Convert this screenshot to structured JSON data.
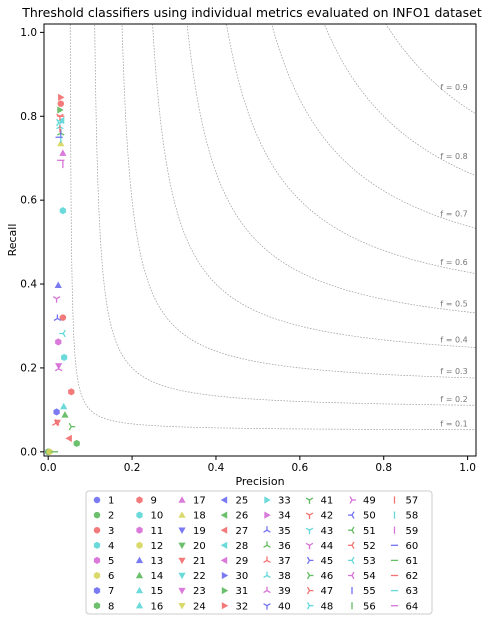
{
  "chart_data": {
    "type": "scatter",
    "title": "Threshold classifiers using individual metrics evaluated on INFO1 dataset",
    "xlabel": "Precision",
    "ylabel": "Recall",
    "xlim": [
      -0.01,
      1.02
    ],
    "ylim": [
      -0.01,
      1.02
    ],
    "x_ticks": [
      0.0,
      0.2,
      0.4,
      0.6,
      0.8,
      1.0
    ],
    "y_ticks": [
      0.0,
      0.2,
      0.4,
      0.6,
      0.8,
      1.0
    ],
    "x_tick_labels": [
      "0.0",
      "0.2",
      "0.4",
      "0.6",
      "0.8",
      "1.0"
    ],
    "y_tick_labels": [
      "0.0",
      "0.2",
      "0.4",
      "0.6",
      "0.8",
      "1.0"
    ],
    "grid": false,
    "legend_placement": "below",
    "f_score_isolines": [
      {
        "f": 0.1,
        "label": "f = 0.1"
      },
      {
        "f": 0.2,
        "label": "f = 0.2"
      },
      {
        "f": 0.3,
        "label": "f = 0.3"
      },
      {
        "f": 0.4,
        "label": "f = 0.4"
      },
      {
        "f": 0.5,
        "label": "f = 0.5"
      },
      {
        "f": 0.6,
        "label": "f = 0.6"
      },
      {
        "f": 0.7,
        "label": "f = 0.7"
      },
      {
        "f": 0.8,
        "label": "f = 0.8"
      },
      {
        "f": 0.9,
        "label": "f = 0.9"
      }
    ],
    "series": [
      {
        "name": "1",
        "marker": "circle",
        "color": "#6b6bf2",
        "points": [
          [
            0.0,
            0.0
          ]
        ]
      },
      {
        "name": "2",
        "marker": "circle",
        "color": "#5cb85c",
        "points": [
          [
            0.0,
            0.0
          ]
        ]
      },
      {
        "name": "3",
        "marker": "circle",
        "color": "#f26b6b",
        "points": [
          [
            0.03,
            0.83
          ],
          [
            0.035,
            0.32
          ]
        ]
      },
      {
        "name": "4",
        "marker": "hexagon",
        "color": "#5cd6d6",
        "points": [
          [
            0.035,
            0.575
          ],
          [
            0.038,
            0.225
          ]
        ]
      },
      {
        "name": "5",
        "marker": "hexagon",
        "color": "#d66bd6",
        "points": [
          [
            0.024,
            0.262
          ]
        ]
      },
      {
        "name": "6",
        "marker": "hexagon",
        "color": "#d6d65c",
        "points": [
          [
            0.003,
            0.0
          ]
        ]
      },
      {
        "name": "7",
        "marker": "hexagon",
        "color": "#6b6bf2",
        "points": [
          [
            0.02,
            0.095
          ]
        ]
      },
      {
        "name": "8",
        "marker": "hexagon",
        "color": "#5cb85c",
        "points": [
          [
            0.068,
            0.02
          ]
        ]
      },
      {
        "name": "9",
        "marker": "hexagon",
        "color": "#f26b6b",
        "points": [
          [
            0.055,
            0.143
          ]
        ]
      },
      {
        "name": "13",
        "marker": "triangle-up",
        "color": "#6b6bf2",
        "points": [
          [
            0.024,
            0.397
          ]
        ]
      },
      {
        "name": "14",
        "marker": "triangle-up",
        "color": "#5cb85c",
        "points": [
          [
            0.04,
            0.088
          ]
        ]
      },
      {
        "name": "15",
        "marker": "triangle-up",
        "color": "#5cd6d6",
        "points": [
          [
            0.037,
            0.108
          ]
        ]
      },
      {
        "name": "17",
        "marker": "triangle-up",
        "color": "#d66bd6",
        "points": [
          [
            0.035,
            0.712
          ]
        ]
      },
      {
        "name": "18",
        "marker": "triangle-up",
        "color": "#d6d65c",
        "points": [
          [
            0.03,
            0.735
          ]
        ]
      },
      {
        "name": "21",
        "marker": "triangle-down",
        "color": "#f26b6b",
        "points": [
          [
            0.022,
            0.07
          ]
        ]
      },
      {
        "name": "23",
        "marker": "triangle-down",
        "color": "#d66bd6",
        "points": [
          [
            0.025,
            0.205
          ]
        ]
      },
      {
        "name": "27",
        "marker": "triangle-left",
        "color": "#f26b6b",
        "points": [
          [
            0.05,
            0.032
          ]
        ]
      },
      {
        "name": "28",
        "marker": "triangle-left",
        "color": "#5cd6d6",
        "points": [
          [
            0.032,
            0.79
          ]
        ]
      },
      {
        "name": "31",
        "marker": "triangle-right",
        "color": "#5cb85c",
        "points": [
          [
            0.028,
            0.815
          ]
        ]
      },
      {
        "name": "32",
        "marker": "triangle-right",
        "color": "#f26b6b",
        "points": [
          [
            0.03,
            0.845
          ]
        ]
      },
      {
        "name": "35",
        "marker": "tri-down",
        "color": "#6b6bf2",
        "points": [
          [
            0.022,
            0.318
          ]
        ]
      },
      {
        "name": "36",
        "marker": "tri-down",
        "color": "#5cb85c",
        "points": [
          [
            0.03,
            0.76
          ]
        ]
      },
      {
        "name": "37",
        "marker": "tri-down",
        "color": "#f26b6b",
        "points": [
          [
            0.018,
            0.068
          ]
        ]
      },
      {
        "name": "38",
        "marker": "tri-down",
        "color": "#5cd6d6",
        "points": [
          [
            0.028,
            0.775
          ]
        ]
      },
      {
        "name": "39",
        "marker": "tri-down",
        "color": "#d66bd6",
        "points": [
          [
            0.025,
            0.198
          ]
        ]
      },
      {
        "name": "42",
        "marker": "tri-up",
        "color": "#f26b6b",
        "points": [
          [
            0.028,
            0.8
          ]
        ]
      },
      {
        "name": "44",
        "marker": "tri-up",
        "color": "#d66bd6",
        "points": [
          [
            0.02,
            0.365
          ]
        ]
      },
      {
        "name": "46",
        "marker": "tri-left",
        "color": "#5cb85c",
        "points": [
          [
            0.055,
            0.06
          ]
        ]
      },
      {
        "name": "48",
        "marker": "tri-left",
        "color": "#5cd6d6",
        "points": [
          [
            0.025,
            0.785
          ]
        ]
      },
      {
        "name": "53",
        "marker": "tri-right",
        "color": "#5cd6d6",
        "points": [
          [
            0.036,
            0.282
          ]
        ]
      },
      {
        "name": "55",
        "marker": "vline",
        "color": "#6b6bf2",
        "points": [
          [
            0.03,
            0.76
          ]
        ]
      },
      {
        "name": "57",
        "marker": "vline",
        "color": "#f26b6b",
        "points": [
          [
            0.028,
            0.77
          ]
        ]
      },
      {
        "name": "58",
        "marker": "vline",
        "color": "#5cd6d6",
        "points": [
          [
            0.03,
            0.745
          ]
        ]
      },
      {
        "name": "59",
        "marker": "vline",
        "color": "#d66bd6",
        "points": [
          [
            0.035,
            0.685
          ]
        ]
      },
      {
        "name": "60",
        "marker": "hline",
        "color": "#6b6bf2",
        "points": [
          [
            0.026,
            0.75
          ]
        ]
      },
      {
        "name": "61",
        "marker": "hline",
        "color": "#5cb85c",
        "points": [
          [
            0.015,
            0.0
          ]
        ]
      },
      {
        "name": "62",
        "marker": "hline",
        "color": "#f26b6b",
        "points": [
          [
            0.03,
            0.8
          ]
        ]
      },
      {
        "name": "64",
        "marker": "hline",
        "color": "#d66bd6",
        "points": [
          [
            0.03,
            0.695
          ]
        ]
      }
    ],
    "legend": {
      "columns": 8,
      "entries": [
        {
          "label": "1",
          "marker": "circle",
          "color": "#6b6bf2"
        },
        {
          "label": "2",
          "marker": "circle",
          "color": "#5cb85c"
        },
        {
          "label": "3",
          "marker": "circle",
          "color": "#f26b6b"
        },
        {
          "label": "4",
          "marker": "hexagon",
          "color": "#5cd6d6"
        },
        {
          "label": "5",
          "marker": "hexagon",
          "color": "#d66bd6"
        },
        {
          "label": "6",
          "marker": "hexagon",
          "color": "#d6d65c"
        },
        {
          "label": "7",
          "marker": "hexagon",
          "color": "#6b6bf2"
        },
        {
          "label": "8",
          "marker": "hexagon",
          "color": "#5cb85c"
        },
        {
          "label": "9",
          "marker": "hexagon",
          "color": "#f26b6b"
        },
        {
          "label": "10",
          "marker": "hexagon",
          "color": "#5cd6d6"
        },
        {
          "label": "11",
          "marker": "hexagon",
          "color": "#d66bd6"
        },
        {
          "label": "12",
          "marker": "hexagon",
          "color": "#d6d65c"
        },
        {
          "label": "13",
          "marker": "triangle-up",
          "color": "#6b6bf2"
        },
        {
          "label": "14",
          "marker": "triangle-up",
          "color": "#5cb85c"
        },
        {
          "label": "15",
          "marker": "triangle-up",
          "color": "#5cd6d6"
        },
        {
          "label": "16",
          "marker": "triangle-up",
          "color": "#5cd6d6"
        },
        {
          "label": "17",
          "marker": "triangle-up",
          "color": "#d66bd6"
        },
        {
          "label": "18",
          "marker": "triangle-up",
          "color": "#d6d65c"
        },
        {
          "label": "19",
          "marker": "triangle-down",
          "color": "#6b6bf2"
        },
        {
          "label": "20",
          "marker": "triangle-down",
          "color": "#5cb85c"
        },
        {
          "label": "21",
          "marker": "triangle-down",
          "color": "#f26b6b"
        },
        {
          "label": "22",
          "marker": "triangle-down",
          "color": "#5cd6d6"
        },
        {
          "label": "23",
          "marker": "triangle-down",
          "color": "#d66bd6"
        },
        {
          "label": "24",
          "marker": "triangle-down",
          "color": "#d6d65c"
        },
        {
          "label": "25",
          "marker": "triangle-left",
          "color": "#6b6bf2"
        },
        {
          "label": "26",
          "marker": "triangle-left",
          "color": "#5cb85c"
        },
        {
          "label": "27",
          "marker": "triangle-left",
          "color": "#f26b6b"
        },
        {
          "label": "28",
          "marker": "triangle-left",
          "color": "#5cd6d6"
        },
        {
          "label": "29",
          "marker": "triangle-left",
          "color": "#d66bd6"
        },
        {
          "label": "30",
          "marker": "triangle-right",
          "color": "#6b6bf2"
        },
        {
          "label": "31",
          "marker": "triangle-right",
          "color": "#5cb85c"
        },
        {
          "label": "32",
          "marker": "triangle-right",
          "color": "#f26b6b"
        },
        {
          "label": "33",
          "marker": "triangle-right",
          "color": "#5cd6d6"
        },
        {
          "label": "34",
          "marker": "triangle-right",
          "color": "#d66bd6"
        },
        {
          "label": "35",
          "marker": "tri-down",
          "color": "#6b6bf2"
        },
        {
          "label": "36",
          "marker": "tri-down",
          "color": "#5cb85c"
        },
        {
          "label": "37",
          "marker": "tri-down",
          "color": "#f26b6b"
        },
        {
          "label": "38",
          "marker": "tri-down",
          "color": "#5cd6d6"
        },
        {
          "label": "39",
          "marker": "tri-down",
          "color": "#d66bd6"
        },
        {
          "label": "40",
          "marker": "tri-up",
          "color": "#6b6bf2"
        },
        {
          "label": "41",
          "marker": "tri-up",
          "color": "#5cb85c"
        },
        {
          "label": "42",
          "marker": "tri-up",
          "color": "#f26b6b"
        },
        {
          "label": "43",
          "marker": "tri-up",
          "color": "#5cd6d6"
        },
        {
          "label": "44",
          "marker": "tri-up",
          "color": "#d66bd6"
        },
        {
          "label": "45",
          "marker": "tri-left",
          "color": "#6b6bf2"
        },
        {
          "label": "46",
          "marker": "tri-left",
          "color": "#5cb85c"
        },
        {
          "label": "47",
          "marker": "tri-left",
          "color": "#f26b6b"
        },
        {
          "label": "48",
          "marker": "tri-left",
          "color": "#5cd6d6"
        },
        {
          "label": "49",
          "marker": "tri-left",
          "color": "#d66bd6"
        },
        {
          "label": "50",
          "marker": "tri-right",
          "color": "#6b6bf2"
        },
        {
          "label": "51",
          "marker": "tri-right",
          "color": "#5cb85c"
        },
        {
          "label": "52",
          "marker": "tri-right",
          "color": "#f26b6b"
        },
        {
          "label": "53",
          "marker": "tri-right",
          "color": "#5cd6d6"
        },
        {
          "label": "54",
          "marker": "tri-right",
          "color": "#d66bd6"
        },
        {
          "label": "55",
          "marker": "vline",
          "color": "#6b6bf2"
        },
        {
          "label": "56",
          "marker": "vline",
          "color": "#5cb85c"
        },
        {
          "label": "57",
          "marker": "vline",
          "color": "#f26b6b"
        },
        {
          "label": "58",
          "marker": "vline",
          "color": "#5cd6d6"
        },
        {
          "label": "59",
          "marker": "vline",
          "color": "#d66bd6"
        },
        {
          "label": "60",
          "marker": "hline",
          "color": "#6b6bf2"
        },
        {
          "label": "61",
          "marker": "hline",
          "color": "#5cb85c"
        },
        {
          "label": "62",
          "marker": "hline",
          "color": "#f26b6b"
        },
        {
          "label": "63",
          "marker": "hline",
          "color": "#5cd6d6"
        },
        {
          "label": "64",
          "marker": "hline",
          "color": "#d66bd6"
        }
      ]
    }
  }
}
